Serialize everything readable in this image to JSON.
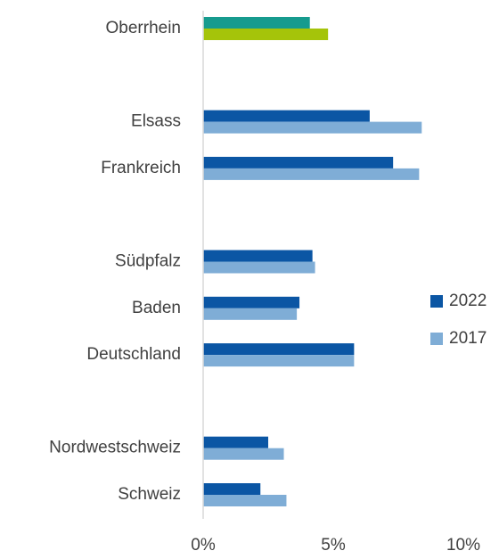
{
  "chart_data": {
    "type": "hbar",
    "categories": [
      "Oberrhein",
      null,
      "Elsass",
      "Frankreich",
      null,
      "Südpfalz",
      "Baden",
      "Deutschland",
      null,
      "Nordwestschweiz",
      "Schweiz"
    ],
    "series": [
      {
        "name": "2022",
        "color": "#0b56a4",
        "colors": [
          "#169b8e",
          "#0b56a4",
          "#0b56a4",
          "#0b56a4",
          "#0b56a4",
          "#0b56a4",
          "#0b56a4",
          "#0b56a4",
          "#0b56a4",
          "#0b56a4",
          "#0b56a4"
        ],
        "values": [
          4.1,
          null,
          6.4,
          7.3,
          null,
          4.2,
          3.7,
          5.8,
          null,
          2.5,
          2.2
        ]
      },
      {
        "name": "2017",
        "color": "#7fadd6",
        "colors": [
          "#a5c40a",
          "#7fadd6",
          "#7fadd6",
          "#7fadd6",
          "#7fadd6",
          "#7fadd6",
          "#7fadd6",
          "#7fadd6",
          "#7fadd6",
          "#7fadd6",
          "#7fadd6"
        ],
        "values": [
          4.8,
          null,
          8.4,
          8.3,
          null,
          4.3,
          3.6,
          5.8,
          null,
          3.1,
          3.2
        ]
      }
    ],
    "xlim": [
      0,
      10
    ],
    "xticks": [
      {
        "value": 0,
        "label": "0%"
      },
      {
        "value": 5,
        "label": "5%"
      },
      {
        "value": 10,
        "label": "10%"
      }
    ],
    "grid": false,
    "legend": "right"
  }
}
